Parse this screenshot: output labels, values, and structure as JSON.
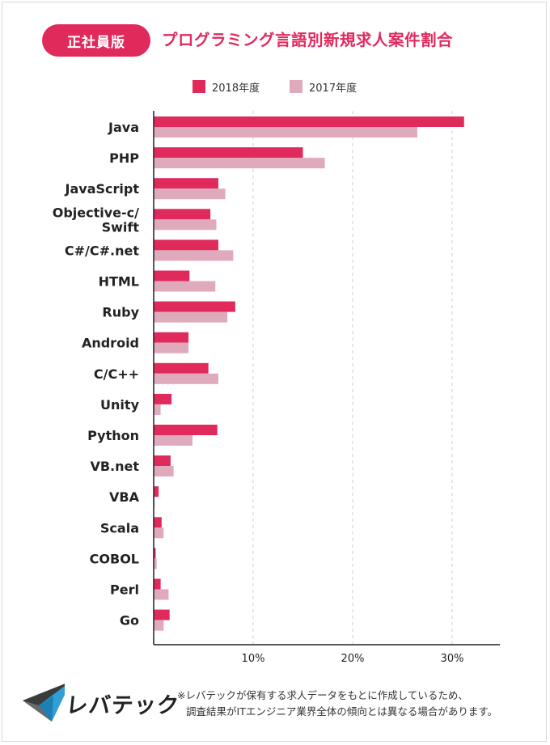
{
  "header": {
    "badge": "正社員版",
    "title": "プログラミング言語別新規求人案件割合"
  },
  "legend": {
    "series_2018": "2018年度",
    "series_2017": "2017年度"
  },
  "colors": {
    "series_2018": "#e02a5c",
    "series_2017": "#dfabbc",
    "accent": "#e02a5c"
  },
  "chart_data": {
    "type": "bar",
    "orientation": "horizontal",
    "categories": [
      "Java",
      "PHP",
      "JavaScript",
      "Objective-c/\nSwift",
      "C#/C#.net",
      "HTML",
      "Ruby",
      "Android",
      "C/C++",
      "Unity",
      "Python",
      "VB.net",
      "VBA",
      "Scala",
      "COBOL",
      "Perl",
      "Go"
    ],
    "series": [
      {
        "name": "2018年度",
        "values": [
          31.2,
          15.0,
          6.5,
          5.7,
          6.5,
          3.6,
          8.2,
          3.5,
          5.5,
          1.8,
          6.4,
          1.7,
          0.5,
          0.8,
          0.2,
          0.7,
          1.6
        ]
      },
      {
        "name": "2017年度",
        "values": [
          26.5,
          17.2,
          7.2,
          6.3,
          8.0,
          6.2,
          7.4,
          3.5,
          6.5,
          0.7,
          3.9,
          2.0,
          0.1,
          1.0,
          0.3,
          1.5,
          1.0
        ]
      }
    ],
    "xlim": [
      0,
      35
    ],
    "x_ticks": [
      "10%",
      "20%",
      "30%"
    ],
    "x_tick_values": [
      10,
      20,
      30
    ],
    "grid": "vertical dashed",
    "legend_placement": "top-center"
  },
  "footnote": {
    "line1": "※レバテックが保有する求人データをもとに作成しているため、",
    "line2": "調査結果がITエンジニア業界全体の傾向とは異なる場合があります。"
  },
  "logo": {
    "text": "レバテック",
    "icon": "levtech-logo-icon"
  }
}
